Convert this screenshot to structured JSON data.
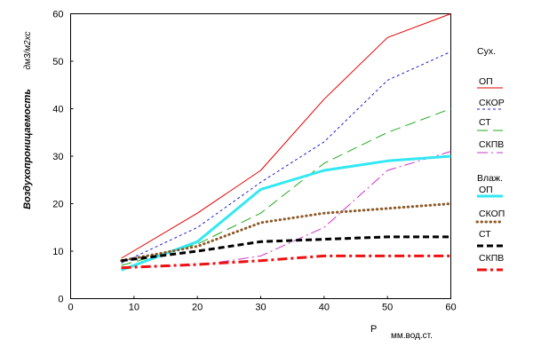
{
  "chart_data": {
    "type": "line",
    "ylabel": "Воздухопроницаемость",
    "yunit": "дм3/м2хс",
    "xlabel": "P",
    "xunit": "мм.вод.ст.",
    "xlim": [
      0,
      60
    ],
    "ylim": [
      0,
      60
    ],
    "xticks": [
      0,
      10,
      20,
      30,
      40,
      50,
      60
    ],
    "yticks": [
      0,
      10,
      20,
      30,
      40,
      50,
      60
    ],
    "grid": false,
    "legend": "right",
    "legend_groups": [
      {
        "title": "Сух.",
        "series": [
          0,
          1,
          2,
          3
        ]
      },
      {
        "title": "Влаж.",
        "series": [
          4,
          5,
          6,
          7
        ]
      }
    ],
    "x": [
      8,
      20,
      30,
      40,
      50,
      60
    ],
    "series": [
      {
        "name": "ОП",
        "color": "#e60000",
        "values": [
          8.5,
          18,
          27,
          42,
          55,
          60
        ]
      },
      {
        "name": "СКОР",
        "color": "#1f1fcc",
        "values": [
          7.5,
          15,
          24.5,
          33,
          46,
          52
        ]
      },
      {
        "name": "СТ",
        "color": "#22aa22",
        "values": [
          7,
          11.5,
          18,
          28.5,
          35,
          40
        ]
      },
      {
        "name": "СКПВ",
        "color": "#cc33cc",
        "values": [
          6.5,
          7,
          9,
          15,
          27,
          31
        ]
      },
      {
        "name": "ОП",
        "color": "#33e8f2",
        "values": [
          6,
          12,
          23,
          27,
          29,
          30
        ]
      },
      {
        "name": "СКОП",
        "color": "#8c5a28",
        "values": [
          8,
          11,
          16,
          18,
          19,
          20
        ]
      },
      {
        "name": "СТ",
        "color": "#000000",
        "values": [
          8,
          10,
          12,
          12.5,
          13,
          13
        ]
      },
      {
        "name": "СКПВ",
        "color": "#ee1111",
        "values": [
          6.5,
          7.2,
          8,
          9,
          9,
          9
        ]
      }
    ]
  }
}
